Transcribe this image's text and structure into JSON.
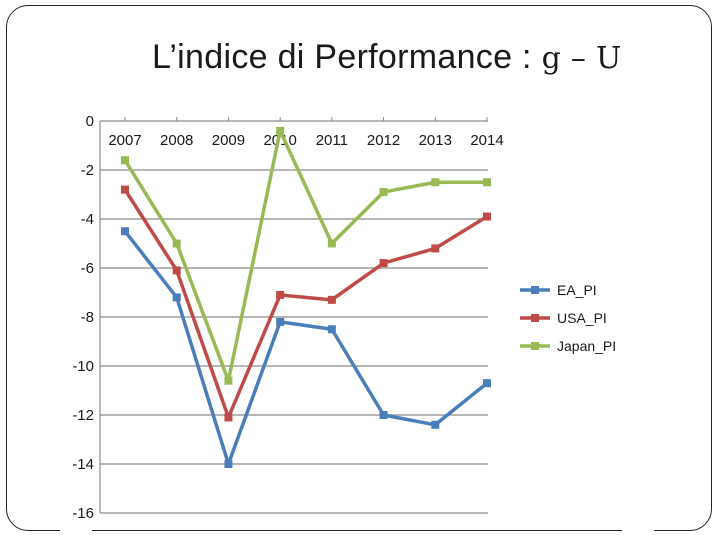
{
  "slide": {
    "title_text": "L’indice di Performance : ",
    "title_formula": "g – U"
  },
  "colors": {
    "EA_PI": "#4a7ebb",
    "USA_PI": "#be4b48",
    "Japan_PI": "#98b954",
    "grid": "#8c8c8c",
    "axis": "#8c8c8c"
  },
  "chart_data": {
    "type": "line",
    "title": "",
    "xlabel": "",
    "ylabel": "",
    "x": [
      "2007",
      "2008",
      "2009",
      "2010",
      "2011",
      "2012",
      "2013",
      "2014"
    ],
    "ylim": [
      -16,
      0
    ],
    "yticks": [
      0,
      -2,
      -4,
      -6,
      -8,
      -10,
      -12,
      -14,
      -16
    ],
    "x_axis_position": "top",
    "grid": true,
    "legend_position": "right",
    "series": [
      {
        "name": "EA_PI",
        "values": [
          -4.5,
          -7.2,
          -14.0,
          -8.2,
          -8.5,
          -12.0,
          -12.4,
          -10.7
        ]
      },
      {
        "name": "USA_PI",
        "values": [
          -2.8,
          -6.1,
          -12.1,
          -7.1,
          -7.3,
          -5.8,
          -5.2,
          -3.9
        ]
      },
      {
        "name": "Japan_PI",
        "values": [
          -1.6,
          -5.0,
          -10.6,
          -0.4,
          -5.0,
          -2.9,
          -2.5,
          -2.5
        ]
      }
    ]
  }
}
